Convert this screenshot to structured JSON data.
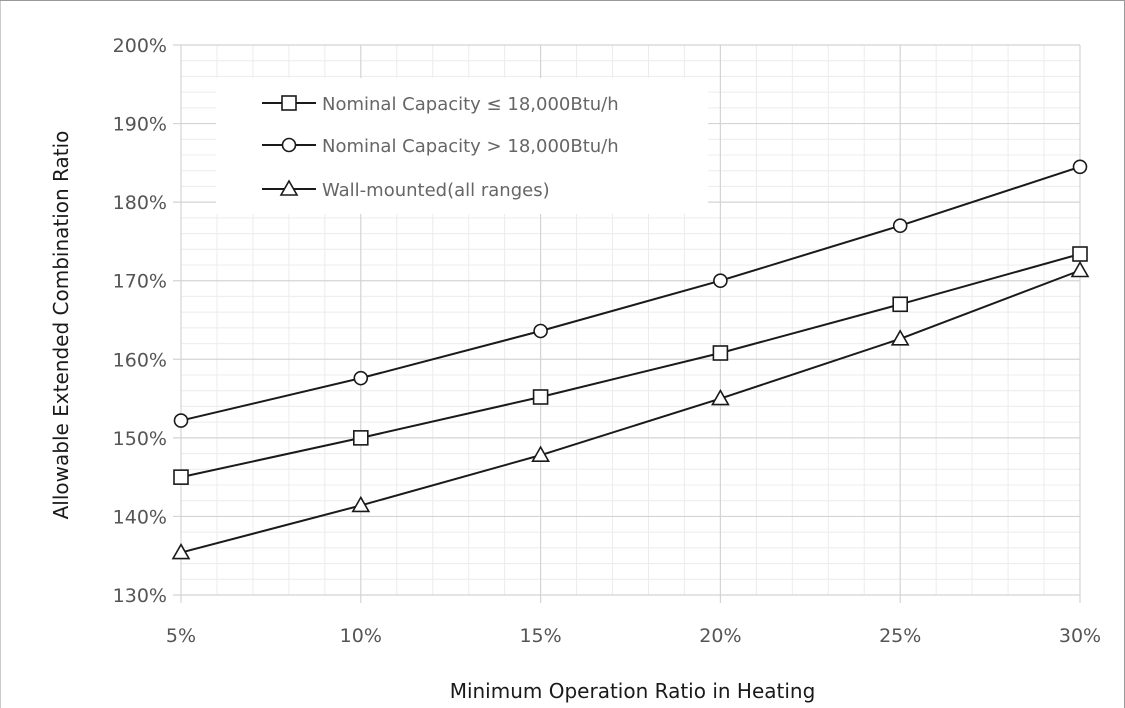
{
  "chart_data": {
    "type": "line",
    "xlabel": "Minimum Operation Ratio in Heating",
    "ylabel": "Allowable Extended Combination Ratio",
    "x": [
      5,
      10,
      15,
      20,
      25,
      30
    ],
    "x_tick_labels": [
      "5%",
      "10%",
      "15%",
      "20%",
      "25%",
      "30%"
    ],
    "xlim": [
      5,
      30
    ],
    "y_ticks": [
      130,
      140,
      150,
      160,
      170,
      180,
      190,
      200
    ],
    "y_tick_labels": [
      "130%",
      "140%",
      "150%",
      "160%",
      "170%",
      "180%",
      "190%",
      "200%"
    ],
    "ylim": [
      130,
      200
    ],
    "grid": true,
    "legend_position": "top-left",
    "series": [
      {
        "name": "Nominal Capacity ≤ 18,000Btu/h",
        "marker": "square",
        "values": [
          145,
          150,
          155.2,
          160.8,
          167,
          173.4
        ]
      },
      {
        "name": "Nominal Capacity > 18,000Btu/h",
        "marker": "circle",
        "values": [
          152.2,
          157.6,
          163.6,
          170,
          177,
          184.5
        ]
      },
      {
        "name": "Wall-mounted(all ranges)",
        "marker": "triangle",
        "values": [
          135.4,
          141.4,
          147.8,
          155,
          162.6,
          171.3
        ]
      }
    ],
    "line_color": "#1a1a1a",
    "grid_major_color": "#d4d4d4",
    "grid_minor_color": "#ececec"
  }
}
